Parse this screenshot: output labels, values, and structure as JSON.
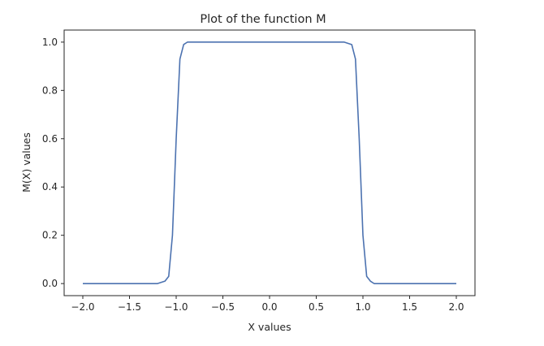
{
  "chart_data": {
    "type": "line",
    "title": "Plot of the function M",
    "xlabel": "X values",
    "ylabel": "M(X) values",
    "xlim": [
      -2.2,
      2.2
    ],
    "ylim": [
      -0.05,
      1.05
    ],
    "xticks": [
      -2.0,
      -1.5,
      -1.0,
      -0.5,
      0.0,
      0.5,
      1.0,
      1.5,
      2.0
    ],
    "xtick_labels": [
      "−2.0",
      "−1.5",
      "−1.0",
      "−0.5",
      "0.0",
      "0.5",
      "1.0",
      "1.5",
      "2.0"
    ],
    "yticks": [
      0.0,
      0.2,
      0.4,
      0.6,
      0.8,
      1.0
    ],
    "ytick_labels": [
      "0.0",
      "0.2",
      "0.4",
      "0.6",
      "0.8",
      "1.0"
    ],
    "grid": false,
    "series": [
      {
        "color": "#4c72b0",
        "x": [
          -2.0,
          -1.5,
          -1.2,
          -1.12,
          -1.08,
          -1.04,
          -1.0,
          -0.96,
          -0.92,
          -0.88,
          -0.8,
          -0.5,
          0.0,
          0.5,
          0.8,
          0.88,
          0.92,
          0.96,
          1.0,
          1.04,
          1.08,
          1.12,
          1.2,
          1.5,
          2.0
        ],
        "y": [
          0.0,
          0.0,
          0.0,
          0.01,
          0.03,
          0.2,
          0.6,
          0.93,
          0.99,
          1.0,
          1.0,
          1.0,
          1.0,
          1.0,
          1.0,
          0.99,
          0.93,
          0.6,
          0.2,
          0.03,
          0.01,
          0.0,
          0.0,
          0.0,
          0.0
        ]
      }
    ]
  }
}
